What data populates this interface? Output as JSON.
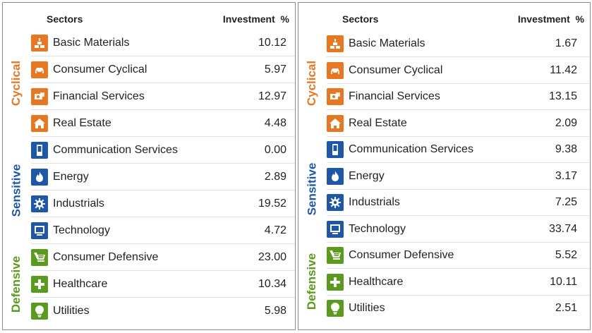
{
  "colors": {
    "cyclical": "#e87722",
    "sensitive": "#1f57a8",
    "defensive": "#5a9a1e"
  },
  "groups": [
    {
      "label": "Cyclical",
      "color": "#e87722"
    },
    {
      "label": "Sensitive",
      "color": "#1f57a8"
    },
    {
      "label": "Defensive",
      "color": "#5a9a1e"
    }
  ],
  "panels": [
    {
      "header_sectors": "Sectors",
      "header_investment": "Investment  %",
      "rows": [
        {
          "sector": "Basic Materials",
          "value": "10.12",
          "icon": "bricks-icon"
        },
        {
          "sector": "Consumer Cyclical",
          "value": "5.97",
          "icon": "car-icon"
        },
        {
          "sector": "Financial Services",
          "value": "12.97",
          "icon": "money-icon"
        },
        {
          "sector": "Real Estate",
          "value": "4.48",
          "icon": "house-icon"
        },
        {
          "sector": "Communication Services",
          "value": "0.00",
          "icon": "phone-icon"
        },
        {
          "sector": "Energy",
          "value": "2.89",
          "icon": "flame-icon"
        },
        {
          "sector": "Industrials",
          "value": "19.52",
          "icon": "gear-icon"
        },
        {
          "sector": "Technology",
          "value": "4.72",
          "icon": "computer-icon"
        },
        {
          "sector": "Consumer Defensive",
          "value": "23.00",
          "icon": "cart-icon"
        },
        {
          "sector": "Healthcare",
          "value": "10.34",
          "icon": "medical-cross-icon"
        },
        {
          "sector": "Utilities",
          "value": "5.98",
          "icon": "lightbulb-icon"
        }
      ]
    },
    {
      "header_sectors": "Sectors",
      "header_investment": "Investment  %",
      "rows": [
        {
          "sector": "Basic Materials",
          "value": "1.67",
          "icon": "bricks-icon"
        },
        {
          "sector": "Consumer Cyclical",
          "value": "11.42",
          "icon": "car-icon"
        },
        {
          "sector": "Financial Services",
          "value": "13.15",
          "icon": "money-icon"
        },
        {
          "sector": "Real Estate",
          "value": "2.09",
          "icon": "house-icon"
        },
        {
          "sector": "Communication Services",
          "value": "9.38",
          "icon": "phone-icon"
        },
        {
          "sector": "Energy",
          "value": "3.17",
          "icon": "flame-icon"
        },
        {
          "sector": "Industrials",
          "value": "7.25",
          "icon": "gear-icon"
        },
        {
          "sector": "Technology",
          "value": "33.74",
          "icon": "computer-icon"
        },
        {
          "sector": "Consumer Defensive",
          "value": "5.52",
          "icon": "cart-icon"
        },
        {
          "sector": "Healthcare",
          "value": "10.11",
          "icon": "medical-cross-icon"
        },
        {
          "sector": "Utilities",
          "value": "2.51",
          "icon": "lightbulb-icon"
        }
      ]
    }
  ]
}
